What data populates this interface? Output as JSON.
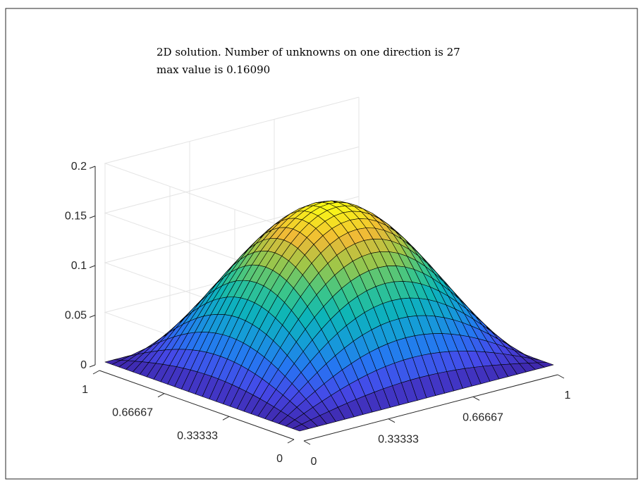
{
  "chart_data": {
    "type": "surface",
    "title_lines": [
      "2D solution. Number of unknowns on one direction is 27",
      "max value is 0.16090"
    ],
    "max_value": 0.1609,
    "unknowns_per_direction": 27,
    "x_range": [
      0,
      1
    ],
    "y_range": [
      0,
      1
    ],
    "zlim": [
      0,
      0.2
    ],
    "x_ticks": [
      "0",
      "0.33333",
      "0.66667",
      "1"
    ],
    "y_ticks": [
      "0",
      "0.33333",
      "0.66667",
      "1"
    ],
    "z_ticks": [
      "0",
      "0.05",
      "0.1",
      "0.15",
      "0.2"
    ],
    "colormap": "parula",
    "grid": true,
    "view": "3d"
  }
}
